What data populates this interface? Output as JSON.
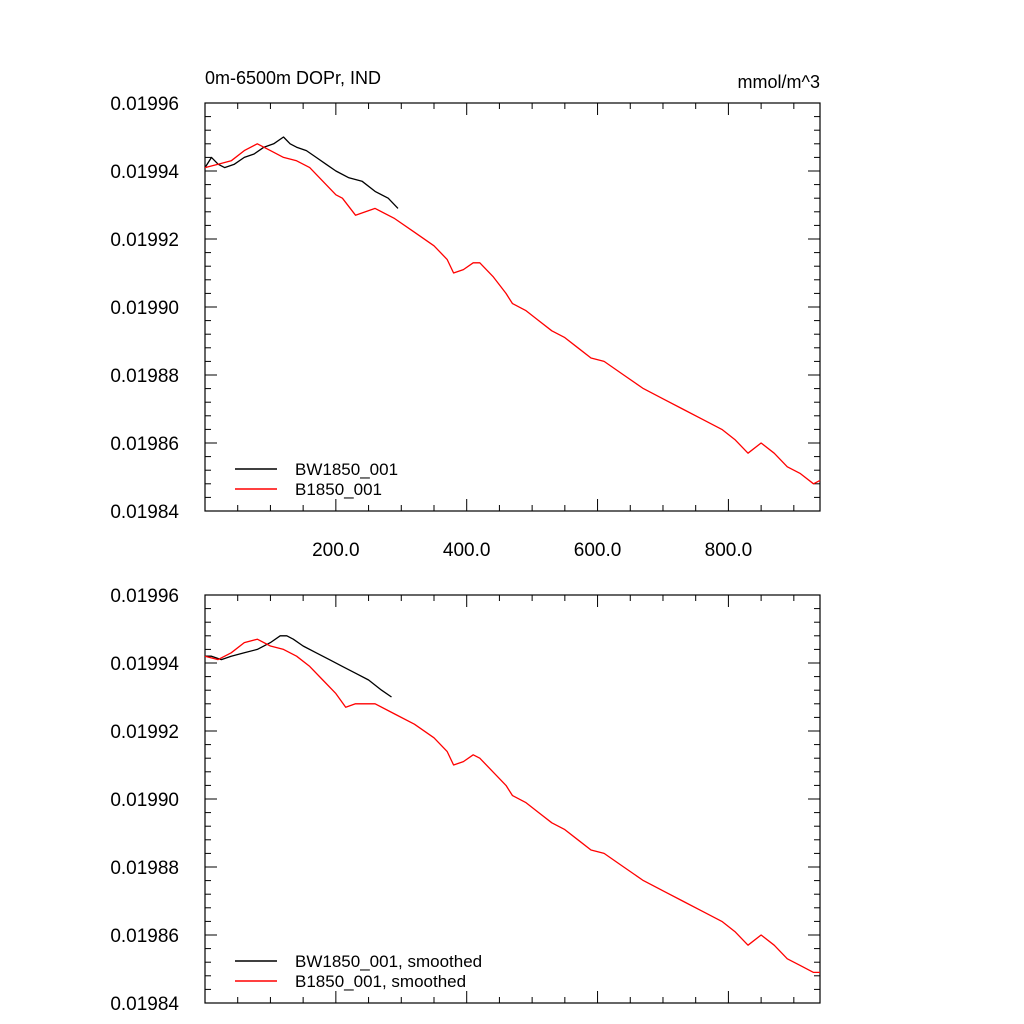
{
  "figure": {
    "title_left": "0m-6500m DOPr, IND",
    "title_right": "mmol/m^3"
  },
  "colors": {
    "bw_series": "#000000",
    "b_series": "#ff0000",
    "axis": "#000000",
    "background": "#ffffff"
  },
  "chart_data": [
    {
      "type": "line",
      "title": "0m-6500m DOPr, IND",
      "unit_label": "mmol/m^3",
      "xlim": [
        0,
        940
      ],
      "ylim": [
        0.01984,
        0.01996
      ],
      "x_ticks": [
        200,
        400,
        600,
        800
      ],
      "x_tick_labels": [
        "200.0",
        "400.0",
        "600.0",
        "800.0"
      ],
      "y_ticks": [
        0.01984,
        0.01986,
        0.01988,
        0.0199,
        0.01992,
        0.01994,
        0.01996
      ],
      "y_tick_labels": [
        "0.01984",
        "0.01986",
        "0.01988",
        "0.01990",
        "0.01992",
        "0.01994",
        "0.01996"
      ],
      "grid": false,
      "legend_position": "bottom-left",
      "series": [
        {
          "name": "BW1850_001",
          "color": "#000000",
          "x": [
            0,
            10,
            20,
            30,
            45,
            60,
            75,
            90,
            105,
            120,
            130,
            140,
            155,
            170,
            185,
            200,
            220,
            240,
            260,
            280,
            295
          ],
          "y": [
            0.019941,
            0.019944,
            0.019942,
            0.019941,
            0.019942,
            0.019944,
            0.019945,
            0.019947,
            0.019948,
            0.01995,
            0.019948,
            0.019947,
            0.019946,
            0.019944,
            0.019942,
            0.01994,
            0.019938,
            0.019937,
            0.019934,
            0.019932,
            0.019929
          ]
        },
        {
          "name": "B1850_001",
          "color": "#ff0000",
          "x": [
            0,
            20,
            40,
            60,
            80,
            100,
            120,
            140,
            160,
            180,
            200,
            210,
            230,
            260,
            290,
            320,
            350,
            370,
            380,
            395,
            410,
            420,
            440,
            460,
            470,
            490,
            510,
            530,
            550,
            570,
            590,
            610,
            640,
            670,
            700,
            730,
            760,
            790,
            810,
            830,
            850,
            870,
            890,
            910,
            930,
            940
          ],
          "y": [
            0.019941,
            0.019942,
            0.019943,
            0.019946,
            0.019948,
            0.019946,
            0.019944,
            0.019943,
            0.019941,
            0.019937,
            0.019933,
            0.019932,
            0.019927,
            0.019929,
            0.019926,
            0.019922,
            0.019918,
            0.019914,
            0.01991,
            0.019911,
            0.019913,
            0.019913,
            0.019909,
            0.019904,
            0.019901,
            0.019899,
            0.019896,
            0.019893,
            0.019891,
            0.019888,
            0.019885,
            0.019884,
            0.01988,
            0.019876,
            0.019873,
            0.01987,
            0.019867,
            0.019864,
            0.019861,
            0.019857,
            0.01986,
            0.019857,
            0.019853,
            0.019851,
            0.019848,
            0.019849
          ]
        }
      ]
    },
    {
      "type": "line",
      "xlim": [
        0,
        940
      ],
      "ylim": [
        0.01984,
        0.01996
      ],
      "x_ticks": [
        200,
        400,
        600,
        800
      ],
      "x_tick_labels": [],
      "y_ticks": [
        0.01984,
        0.01986,
        0.01988,
        0.0199,
        0.01992,
        0.01994,
        0.01996
      ],
      "y_tick_labels": [
        "0.01984",
        "0.01986",
        "0.01988",
        "0.01990",
        "0.01992",
        "0.01994",
        "0.01996"
      ],
      "grid": false,
      "legend_position": "bottom-left",
      "series": [
        {
          "name": "BW1850_001, smoothed",
          "color": "#000000",
          "x": [
            0,
            10,
            25,
            40,
            60,
            80,
            100,
            115,
            125,
            135,
            150,
            170,
            190,
            210,
            230,
            250,
            270,
            285
          ],
          "y": [
            0.019942,
            0.019942,
            0.019941,
            0.019942,
            0.019943,
            0.019944,
            0.019946,
            0.019948,
            0.019948,
            0.019947,
            0.019945,
            0.019943,
            0.019941,
            0.019939,
            0.019937,
            0.019935,
            0.019932,
            0.01993
          ]
        },
        {
          "name": "B1850_001, smoothed",
          "color": "#ff0000",
          "x": [
            0,
            20,
            40,
            60,
            80,
            100,
            120,
            140,
            160,
            180,
            200,
            215,
            230,
            260,
            290,
            320,
            350,
            370,
            380,
            395,
            410,
            420,
            440,
            460,
            470,
            490,
            510,
            530,
            550,
            570,
            590,
            610,
            640,
            670,
            700,
            730,
            760,
            790,
            810,
            830,
            850,
            870,
            890,
            910,
            930,
            940
          ],
          "y": [
            0.019942,
            0.019941,
            0.019943,
            0.019946,
            0.019947,
            0.019945,
            0.019944,
            0.019942,
            0.019939,
            0.019935,
            0.019931,
            0.019927,
            0.019928,
            0.019928,
            0.019925,
            0.019922,
            0.019918,
            0.019914,
            0.01991,
            0.019911,
            0.019913,
            0.019912,
            0.019908,
            0.019904,
            0.019901,
            0.019899,
            0.019896,
            0.019893,
            0.019891,
            0.019888,
            0.019885,
            0.019884,
            0.01988,
            0.019876,
            0.019873,
            0.01987,
            0.019867,
            0.019864,
            0.019861,
            0.019857,
            0.01986,
            0.019857,
            0.019853,
            0.019851,
            0.019849,
            0.019849
          ]
        }
      ]
    }
  ]
}
